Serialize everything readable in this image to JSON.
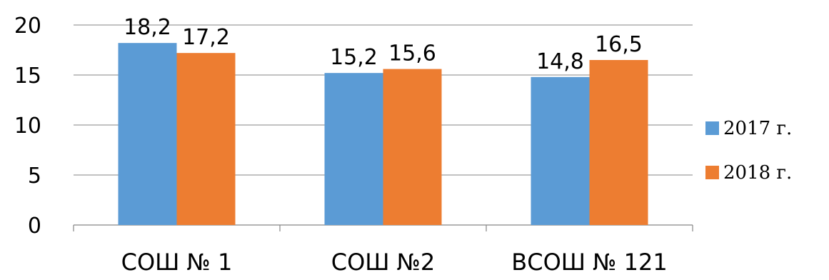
{
  "chart_data": {
    "type": "bar",
    "title": "",
    "xlabel": "",
    "ylabel": "",
    "categories": [
      "СОШ № 1",
      "СОШ №2",
      "ВСОШ № 121"
    ],
    "series": [
      {
        "name": "2017 г.",
        "values": [
          18.2,
          15.2,
          14.8
        ],
        "labels": [
          "18,2",
          "15,2",
          "14,8"
        ],
        "color": "#5B9BD5"
      },
      {
        "name": "2018 г.",
        "values": [
          17.2,
          15.6,
          16.5
        ],
        "labels": [
          "17,2",
          "15,6",
          "16,5"
        ],
        "color": "#ED7D31"
      }
    ],
    "ylim": [
      0,
      20
    ],
    "yticks": [
      0,
      5,
      10,
      15,
      20
    ],
    "ytick_labels": [
      "0",
      "5",
      "10",
      "15",
      "20"
    ],
    "grid": true,
    "legend_position": "right"
  }
}
